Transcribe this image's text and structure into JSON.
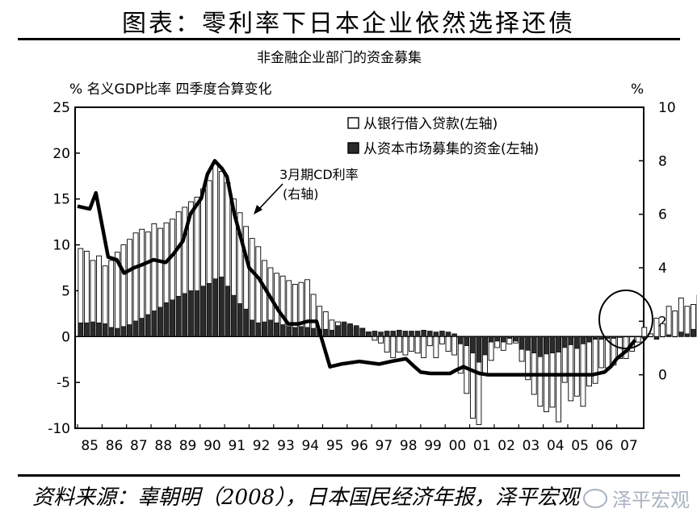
{
  "figure_title": "图表：零利率下日本企业依然选择还债",
  "source_text": "资料来源：辜朝明（2008），日本国民经济年报，泽平宏观",
  "watermark_text": "泽平宏观",
  "colors": {
    "dark_bar": "#2b2b2b",
    "light_bar": "#ffffff",
    "line": "#000000"
  },
  "chart_data": {
    "type": "bar",
    "title": "非金融企业部门的资金募集",
    "left_axis_label": "%  名义GDP比率  四季度合算变化",
    "right_axis_unit": "%",
    "x_ticks": [
      "85",
      "86",
      "87",
      "88",
      "89",
      "90",
      "91",
      "92",
      "93",
      "94",
      "95",
      "96",
      "97",
      "98",
      "99",
      "00",
      "01",
      "02",
      "03",
      "04",
      "05",
      "06",
      "07"
    ],
    "left_ylim": [
      -10,
      25
    ],
    "left_ticks": [
      25,
      20,
      15,
      10,
      5,
      0,
      -5,
      -10
    ],
    "right_ylim": [
      -2,
      10
    ],
    "right_ticks": [
      10,
      8,
      6,
      4,
      2,
      0
    ],
    "legend": [
      {
        "label": "从银行借入贷款(左轴)",
        "kind": "light"
      },
      {
        "label": "从资本市场募集的资金(左轴)",
        "kind": "dark"
      }
    ],
    "annotation": {
      "line1": "3月期CD利率",
      "line2": "(右轴)"
    },
    "series": [
      {
        "name": "从银行借入贷款(左轴)",
        "values": [
          9.6,
          9.3,
          8.3,
          8.8,
          7.7,
          8.3,
          9.2,
          10.0,
          10.6,
          11.3,
          11.7,
          11.4,
          12.3,
          11.8,
          12.4,
          12.8,
          13.6,
          14.1,
          14.7,
          15.2,
          16.1,
          17.0,
          19.0,
          18.0,
          16.8,
          15.0,
          13.5,
          12.0,
          10.7,
          9.8,
          8.3,
          7.5,
          6.9,
          6.6,
          6.1,
          5.7,
          5.9,
          6.2,
          4.6,
          3.3,
          2.7,
          1.8,
          1.6,
          1.4,
          1.2,
          1.0,
          0.9,
          0.5,
          -0.4,
          -0.7,
          -1.7,
          -2.3,
          -1.7,
          -2.0,
          -1.6,
          -1.8,
          -2.3,
          -1.0,
          -2.3,
          -0.8,
          -1.6,
          -2.0,
          -4.0,
          -6.2,
          -8.9,
          -9.6,
          -4.2,
          -2.6,
          -1.2,
          -1.5,
          -0.8,
          -0.7,
          -2.7,
          -4.7,
          -6.3,
          -7.6,
          -8.2,
          -7.7,
          -9.3,
          -5.0,
          -7.0,
          -6.5,
          -7.6,
          -5.4,
          -5.1,
          -3.4,
          -3.4,
          -3.1,
          -2.4,
          -2.4,
          -1.6,
          -0.6,
          1.0,
          0.3,
          2.0,
          1.4,
          3.3,
          2.8,
          4.2,
          3.3,
          3.5,
          4.5
        ],
        "positions": "quarterly 1985Q1–2007Q4"
      },
      {
        "name": "从资本市场募集的资金(左轴)",
        "values": [
          1.5,
          1.5,
          1.6,
          1.5,
          1.4,
          1.0,
          0.9,
          1.1,
          1.3,
          1.7,
          2.0,
          2.4,
          2.8,
          3.2,
          3.7,
          4.0,
          4.4,
          4.7,
          5.0,
          5.0,
          5.5,
          5.8,
          6.3,
          6.5,
          5.5,
          4.5,
          3.6,
          3.0,
          1.8,
          1.5,
          1.6,
          1.8,
          1.5,
          1.3,
          1.1,
          1.0,
          1.1,
          1.0,
          0.9,
          0.8,
          0.8,
          0.7,
          1.2,
          1.6,
          1.4,
          1.2,
          0.9,
          0.5,
          0.6,
          0.5,
          0.6,
          0.6,
          0.7,
          0.6,
          0.6,
          0.6,
          0.7,
          0.6,
          0.5,
          0.6,
          0.5,
          0.3,
          -0.8,
          -1.0,
          -1.8,
          -2.8,
          -2.0,
          -0.6,
          -0.5,
          -0.6,
          -0.2,
          -0.5,
          -1.4,
          -1.5,
          -1.8,
          -2.2,
          -1.9,
          -1.8,
          -1.7,
          -1.2,
          -0.9,
          -1.3,
          -0.8,
          -0.6,
          -0.3,
          -0.3,
          -0.2,
          -0.2,
          -0.1,
          0.0,
          0.0,
          0.0,
          -0.2,
          0.0,
          -0.3,
          0.0,
          0.2,
          0.0,
          0.5,
          0.3,
          0.8,
          1.2
        ]
      },
      {
        "name": "3月期CD利率(右轴)",
        "axis": "right",
        "x": [
          1985.0,
          1985.5,
          1985.75,
          1986.25,
          1986.6,
          1986.9,
          1987.3,
          1987.6,
          1988.1,
          1988.6,
          1988.9,
          1989.3,
          1989.6,
          1990.05,
          1990.3,
          1990.6,
          1990.9,
          1991.1,
          1991.4,
          1991.7,
          1992.0,
          1992.4,
          1992.8,
          1993.2,
          1993.6,
          1994.0,
          1994.4,
          1994.75,
          1995.3,
          1995.75,
          1996.5,
          1997.3,
          1997.8,
          1998.4,
          1998.75,
          1999.0,
          1999.4,
          1999.7,
          1999.9,
          2000.2,
          2000.5,
          2000.75,
          2001.0,
          2001.4,
          2001.75,
          2002.5,
          2003.3,
          2004.3,
          2005.3,
          2006.0,
          2006.5,
          2006.75,
          2007.0,
          2007.4,
          2007.75
        ],
        "values": [
          6.3,
          6.2,
          6.8,
          4.4,
          4.3,
          3.8,
          4.0,
          4.1,
          4.3,
          4.2,
          4.5,
          5.0,
          6.0,
          6.6,
          7.5,
          8.0,
          7.7,
          7.4,
          6.0,
          5.0,
          4.0,
          3.6,
          3.0,
          2.4,
          1.9,
          1.9,
          2.0,
          2.0,
          0.3,
          0.4,
          0.5,
          0.4,
          0.5,
          0.6,
          0.3,
          0.1,
          0.05,
          0.05,
          0.05,
          0.05,
          0.2,
          0.3,
          0.2,
          0.05,
          0.0,
          0.0,
          0.0,
          0.0,
          0.0,
          0.0,
          0.1,
          0.3,
          0.6,
          0.9,
          1.3
        ]
      }
    ]
  }
}
